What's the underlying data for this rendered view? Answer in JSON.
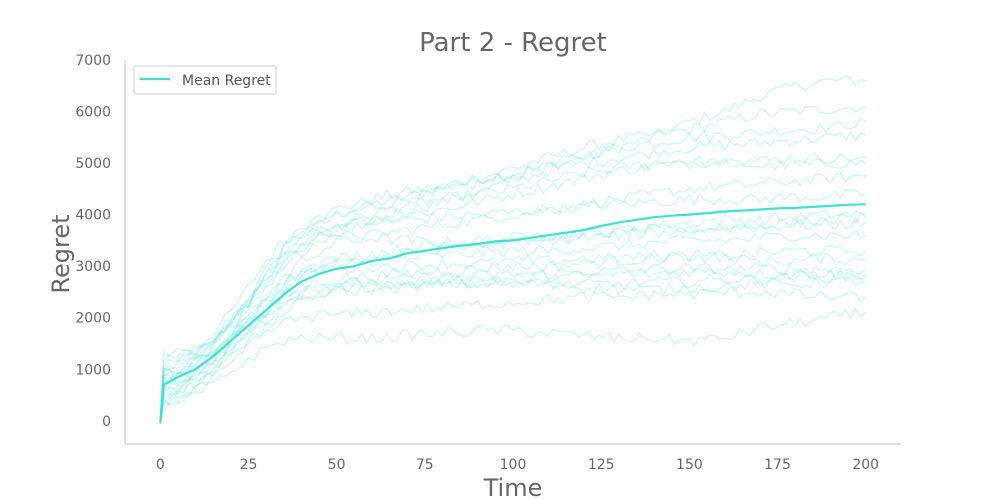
{
  "chart_data": {
    "type": "line",
    "title": "Part 2 - Regret",
    "xlabel": "Time",
    "ylabel": "Regret",
    "xlim": [
      -10,
      210
    ],
    "ylim": [
      -450,
      7000
    ],
    "xticks": [
      0,
      25,
      50,
      75,
      100,
      125,
      150,
      175,
      200
    ],
    "yticks": [
      0,
      1000,
      2000,
      3000,
      4000,
      5000,
      6000,
      7000
    ],
    "grid": false,
    "legend": {
      "placement": "upper-left",
      "entries": [
        "Mean Regret"
      ]
    },
    "colors": {
      "mean": "#40e0d0",
      "runs": "#40e0d0",
      "axis": "#cccccc",
      "text": "#666666"
    },
    "mean_series": {
      "name": "Mean Regret",
      "x": [
        0,
        1,
        5,
        10,
        15,
        20,
        25,
        30,
        35,
        40,
        45,
        50,
        55,
        60,
        65,
        70,
        75,
        80,
        85,
        90,
        95,
        100,
        105,
        110,
        115,
        120,
        125,
        130,
        135,
        140,
        145,
        150,
        155,
        160,
        165,
        170,
        175,
        180,
        185,
        190,
        195,
        200
      ],
      "y": [
        -50,
        700,
        850,
        1000,
        1250,
        1550,
        1850,
        2150,
        2450,
        2700,
        2850,
        2950,
        3000,
        3100,
        3150,
        3250,
        3300,
        3350,
        3400,
        3430,
        3480,
        3500,
        3550,
        3600,
        3650,
        3700,
        3780,
        3850,
        3900,
        3950,
        3980,
        4000,
        4030,
        4060,
        4080,
        4100,
        4120,
        4130,
        4150,
        4170,
        4190,
        4200
      ]
    },
    "runs_x": [
      0,
      1,
      5,
      10,
      15,
      20,
      25,
      30,
      35,
      40,
      45,
      50,
      60,
      70,
      80,
      90,
      100,
      110,
      120,
      130,
      140,
      150,
      160,
      170,
      180,
      190,
      200
    ],
    "runs": [
      [
        0,
        1300,
        1300,
        1350,
        1500,
        1900,
        2400,
        2900,
        3400,
        3700,
        3900,
        4000,
        4200,
        4350,
        4500,
        4700,
        4800,
        4950,
        5100,
        5300,
        5500,
        5800,
        6000,
        6300,
        6500,
        6600,
        6600
      ],
      [
        0,
        1100,
        1200,
        1400,
        1700,
        2100,
        2600,
        3100,
        3500,
        3750,
        3950,
        4100,
        4300,
        4450,
        4550,
        4700,
        4900,
        5100,
        5300,
        5450,
        5550,
        5650,
        5800,
        5950,
        6000,
        6050,
        6100
      ],
      [
        0,
        900,
        1000,
        1200,
        1500,
        1900,
        2300,
        2800,
        3300,
        3600,
        3800,
        3950,
        4150,
        4300,
        4450,
        4600,
        4750,
        4950,
        5150,
        5300,
        5400,
        5500,
        5550,
        5600,
        5650,
        5700,
        5800
      ],
      [
        0,
        700,
        800,
        1000,
        1300,
        1700,
        2100,
        2600,
        3000,
        3300,
        3550,
        3700,
        3900,
        4100,
        4250,
        4450,
        4650,
        4850,
        5000,
        5100,
        5200,
        5300,
        5350,
        5400,
        5450,
        5500,
        5550
      ],
      [
        0,
        800,
        900,
        1100,
        1400,
        1800,
        2200,
        2700,
        3100,
        3400,
        3600,
        3800,
        4000,
        4200,
        4300,
        4400,
        4500,
        4650,
        4800,
        4900,
        5000,
        5050,
        5000,
        4950,
        4950,
        5000,
        5000
      ],
      [
        0,
        1000,
        1100,
        1300,
        1600,
        1950,
        2300,
        2700,
        3050,
        3300,
        3500,
        3650,
        3850,
        4000,
        4100,
        4250,
        4400,
        4550,
        4700,
        4850,
        4950,
        5000,
        5050,
        5050,
        5100,
        5100,
        5100
      ],
      [
        0,
        600,
        700,
        900,
        1200,
        1600,
        2000,
        2400,
        2800,
        3100,
        3300,
        3450,
        3600,
        3700,
        3800,
        3900,
        4000,
        4100,
        4200,
        4300,
        4400,
        4500,
        4550,
        4600,
        4650,
        4700,
        4750
      ],
      [
        0,
        900,
        1000,
        1200,
        1500,
        1900,
        2300,
        2700,
        3200,
        3500,
        3700,
        3800,
        3850,
        3900,
        3950,
        4000,
        4050,
        4100,
        4150,
        4200,
        4250,
        4300,
        4300,
        4300,
        4350,
        4350,
        4400
      ],
      [
        0,
        1200,
        1250,
        1400,
        1600,
        1900,
        2300,
        2800,
        3300,
        3600,
        3650,
        3600,
        3550,
        3500,
        3450,
        3500,
        3550,
        3600,
        3650,
        3700,
        3800,
        3850,
        3900,
        3900,
        3950,
        4000,
        4000
      ],
      [
        0,
        500,
        600,
        800,
        1100,
        1500,
        1900,
        2300,
        2700,
        2900,
        3050,
        3150,
        3250,
        3350,
        3400,
        3450,
        3500,
        3550,
        3600,
        3650,
        3700,
        3700,
        3750,
        3750,
        3800,
        3800,
        3850
      ],
      [
        0,
        700,
        800,
        1000,
        1300,
        1650,
        2000,
        2400,
        2700,
        2900,
        3000,
        3050,
        3100,
        3150,
        3200,
        3250,
        3300,
        3300,
        3350,
        3400,
        3450,
        3500,
        3500,
        3550,
        3600,
        3600,
        3600
      ],
      [
        0,
        400,
        500,
        700,
        1000,
        1400,
        1800,
        2100,
        2400,
        2600,
        2700,
        2750,
        2800,
        2850,
        2900,
        2950,
        3000,
        3000,
        3050,
        3100,
        3150,
        3200,
        3200,
        3250,
        3300,
        3300,
        3300
      ],
      [
        0,
        800,
        900,
        1100,
        1350,
        1700,
        2000,
        2300,
        2600,
        2800,
        2900,
        2950,
        3000,
        3000,
        3050,
        3050,
        3100,
        3100,
        3150,
        3150,
        3200,
        3200,
        3150,
        3100,
        3100,
        3150,
        3100
      ],
      [
        0,
        600,
        700,
        900,
        1150,
        1450,
        1750,
        2050,
        2300,
        2500,
        2600,
        2650,
        2700,
        2750,
        2800,
        2800,
        2850,
        2850,
        2900,
        2900,
        2950,
        2950,
        2950,
        2950,
        2950,
        2950,
        2950
      ],
      [
        0,
        300,
        400,
        600,
        900,
        1200,
        1500,
        1800,
        2100,
        2300,
        2450,
        2550,
        2600,
        2650,
        2700,
        2750,
        2750,
        2800,
        2800,
        2850,
        2850,
        2900,
        2900,
        2850,
        2850,
        2850,
        2850
      ],
      [
        0,
        1000,
        1050,
        1150,
        1350,
        1600,
        1850,
        2100,
        2350,
        2500,
        2550,
        2600,
        2650,
        2650,
        2700,
        2700,
        2700,
        2650,
        2650,
        2650,
        2700,
        2700,
        2750,
        2750,
        2800,
        2800,
        2800
      ],
      [
        0,
        500,
        600,
        800,
        1050,
        1350,
        1650,
        1950,
        2200,
        2350,
        2450,
        2500,
        2550,
        2600,
        2650,
        2650,
        2650,
        2650,
        2600,
        2550,
        2550,
        2600,
        2600,
        2650,
        2650,
        2700,
        2700
      ],
      [
        0,
        200,
        300,
        500,
        700,
        950,
        1200,
        1400,
        1550,
        1600,
        1600,
        1600,
        1600,
        1650,
        1700,
        1750,
        1750,
        1700,
        1650,
        1600,
        1600,
        1550,
        1600,
        1800,
        1900,
        2000,
        2100
      ],
      [
        0,
        400,
        500,
        650,
        900,
        1200,
        1450,
        1700,
        1900,
        2000,
        2050,
        2050,
        2100,
        2150,
        2200,
        2250,
        2300,
        2350,
        2400,
        2400,
        2450,
        2450,
        2500,
        2500,
        2450,
        2400,
        2400
      ],
      [
        0,
        900,
        950,
        1050,
        1250,
        1500,
        1800,
        2100,
        2450,
        2750,
        2950,
        3050,
        3150,
        3250,
        3350,
        3400,
        3450,
        3500,
        3550,
        3600,
        3650,
        3700,
        3750,
        3800,
        3850,
        3900,
        3950
      ]
    ]
  }
}
